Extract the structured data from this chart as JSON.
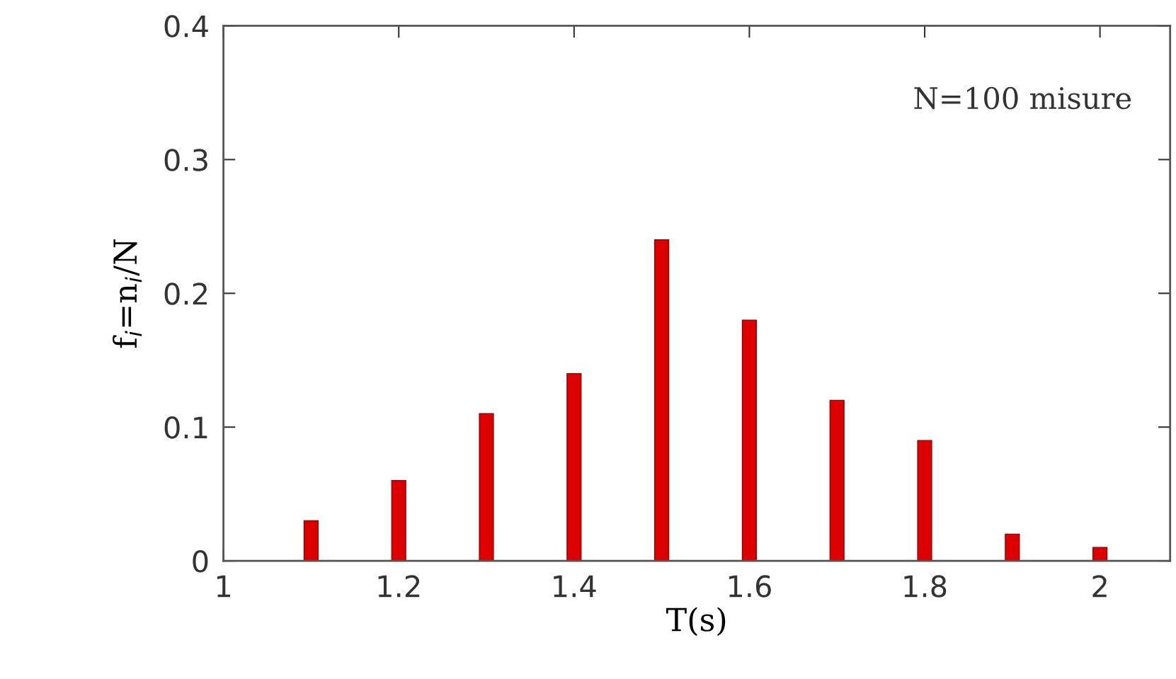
{
  "chart_data": {
    "type": "bar",
    "xlabel": "T(s)",
    "ylabel": "f$_{i}$=n$_{i}$/N",
    "x": [
      1.1,
      1.2,
      1.3,
      1.4,
      1.5,
      1.6,
      1.7,
      1.8,
      1.9,
      2.0
    ],
    "values": [
      0.03,
      0.06,
      0.11,
      0.14,
      0.24,
      0.18,
      0.12,
      0.09,
      0.02,
      0.01
    ],
    "color": "#dd0000",
    "xlim": [
      1,
      2.08
    ],
    "xticks": [
      1,
      1.2,
      1.4,
      1.6,
      1.8,
      2
    ],
    "ylim": [
      0,
      0.4
    ],
    "yticks": [
      0,
      0.1,
      0.2,
      0.3,
      0.4
    ],
    "annotations": [
      "N=100 misure"
    ],
    "grid": false
  }
}
